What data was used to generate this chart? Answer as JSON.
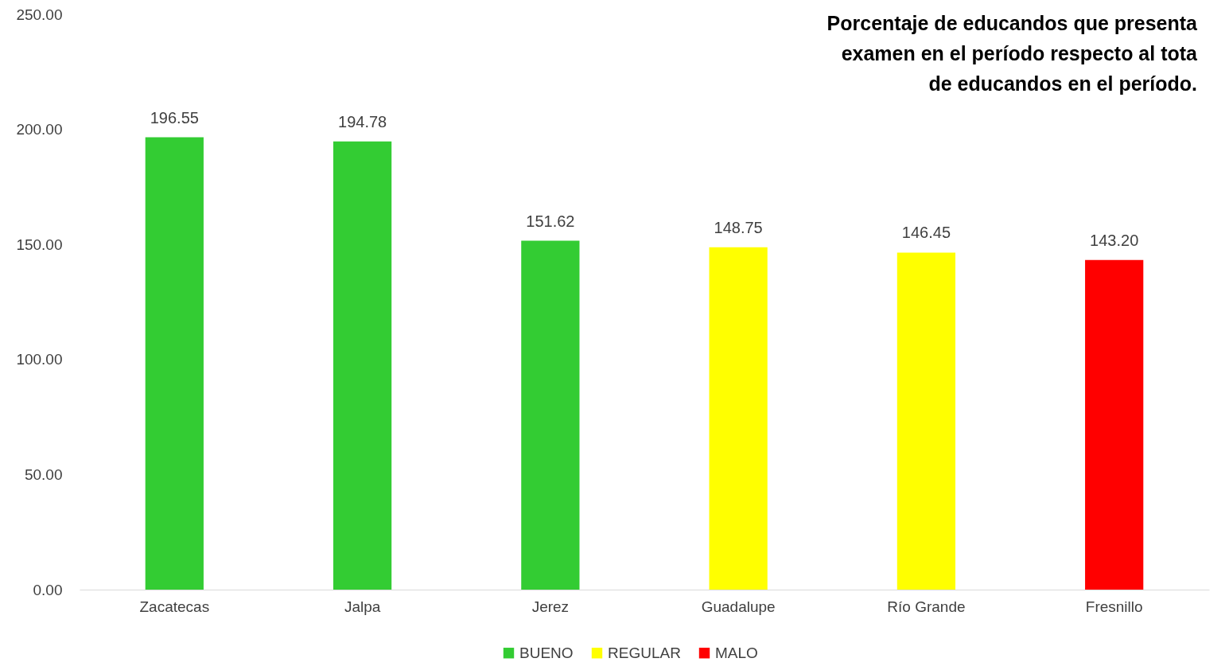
{
  "chart_data": {
    "type": "bar",
    "title": [
      "Porcentaje de educandos que presenta",
      "examen en el período respecto al tota",
      "de educandos en el período."
    ],
    "categories": [
      "Zacatecas",
      "Jalpa",
      "Jerez",
      "Guadalupe",
      "Río Grande",
      "Fresnillo"
    ],
    "series": [
      {
        "name": "BUENO",
        "color": "#33cc33",
        "values": [
          196.55,
          194.78,
          151.62,
          null,
          null,
          null
        ],
        "value_labels": [
          "196.55",
          "194.78",
          "151.62",
          null,
          null,
          null
        ]
      },
      {
        "name": "REGULAR",
        "color": "#ffff00",
        "values": [
          null,
          null,
          null,
          148.75,
          146.45,
          null
        ],
        "value_labels": [
          null,
          null,
          null,
          "148.75",
          "146.45",
          null
        ]
      },
      {
        "name": "MALO",
        "color": "#ff0000",
        "values": [
          null,
          null,
          null,
          null,
          null,
          143.2
        ],
        "value_labels": [
          null,
          null,
          null,
          null,
          null,
          "143.20"
        ]
      }
    ],
    "ylim": [
      0,
      250
    ],
    "yticks": [
      {
        "value": 0,
        "label": "0.00"
      },
      {
        "value": 50,
        "label": "50.00"
      },
      {
        "value": 100,
        "label": "100.00"
      },
      {
        "value": 150,
        "label": "150.00"
      },
      {
        "value": 200,
        "label": "200.00"
      },
      {
        "value": 250,
        "label": "250.00"
      }
    ],
    "grid": false,
    "legend": "bottom"
  }
}
